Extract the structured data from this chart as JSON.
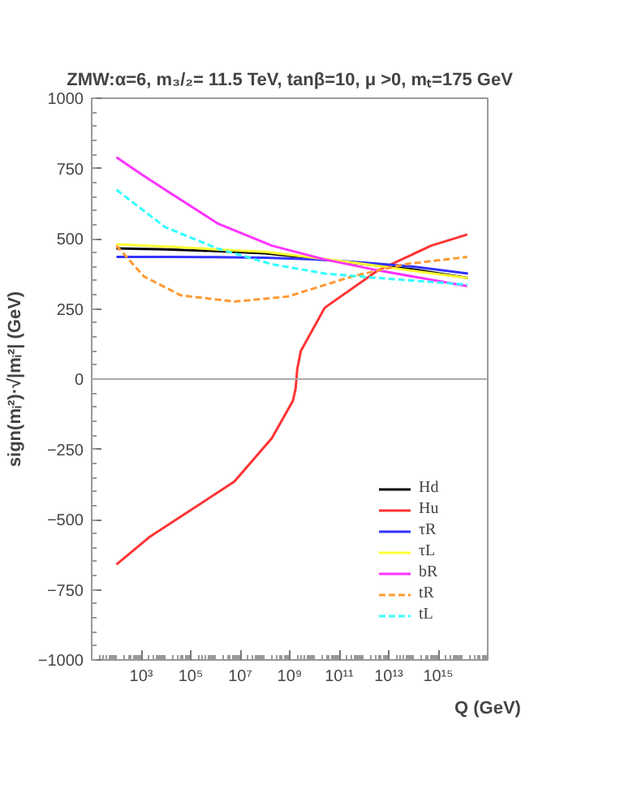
{
  "chart_data": {
    "type": "line",
    "title": "ZMW:α=6, m₃/₂= 11.5 TeV, tanβ=10, μ >0, mₜ=175 GeV",
    "xlabel": "Q (GeV)",
    "ylabel": "sign(mᵢ²)·√|mᵢ²| (GeV)",
    "log": "x",
    "xlim": [
      10,
      1e+17
    ],
    "xticks": [
      {
        "value": 1000,
        "label": "10³"
      },
      {
        "value": 100000,
        "label": "10⁵"
      },
      {
        "value": 10000000,
        "label": "10⁷"
      },
      {
        "value": 1000000000,
        "label": "10⁹"
      },
      {
        "value": 100000000000,
        "label": "10¹¹"
      },
      {
        "value": 10000000000000,
        "label": "10¹³"
      },
      {
        "value": 1000000000000000,
        "label": "10¹⁵"
      }
    ],
    "ylim": [
      -1000,
      1000
    ],
    "yticks": [
      -1000,
      -750,
      -500,
      -250,
      0,
      250,
      500,
      750,
      1000
    ],
    "grid": false,
    "legend": "bottom right",
    "ref_lines": [
      {
        "axis": "y",
        "value": 0,
        "label": null,
        "color": "#aaaaaa"
      }
    ],
    "series": [
      {
        "name": "Hd",
        "color": "#000000",
        "line_style": "solid",
        "x": [
          100.0,
          10000.0,
          1000000.0,
          100000000.0,
          10000000000.0,
          1000000000000.0,
          100000000000000.0,
          1.6e+16
        ],
        "values": [
          465,
          462,
          456,
          448,
          430,
          410,
          390,
          360
        ]
      },
      {
        "name": "Hu",
        "color": "#ff3333",
        "line_style": "solid",
        "x": [
          100.0,
          2100.0,
          5800000.0,
          190000000.0,
          1350000000.0,
          1740000000.0,
          2000000000.0,
          2800000000.0,
          26000000000.0,
          3700000000000.0,
          520000000000000.0,
          1.5e+16
        ],
        "values": [
          -660,
          -563,
          -365,
          -210,
          -77,
          -33,
          33,
          100,
          254,
          387,
          475,
          515
        ]
      },
      {
        "name": "τR",
        "color": "#3333ff",
        "line_style": "solid",
        "x": [
          100.0,
          10000.0,
          1000000.0,
          100000000.0,
          10000000000.0,
          1000000000000.0,
          100000000000000.0,
          1.6e+16
        ],
        "values": [
          435,
          435,
          434,
          432,
          426,
          415,
          400,
          376
        ]
      },
      {
        "name": "τL",
        "color": "#ffff33",
        "line_style": "solid",
        "x": [
          100.0,
          10000.0,
          1000000.0,
          100000000.0,
          10000000000.0,
          1000000000000.0,
          100000000000000.0,
          1.6e+16
        ],
        "values": [
          480,
          472,
          462,
          453,
          432,
          410,
          385,
          360
        ]
      },
      {
        "name": "bR",
        "color": "#ff33ff",
        "line_style": "solid",
        "x": [
          100.0,
          1000.0,
          9300.0,
          1300000.0,
          190000000.0,
          26000000000.0,
          3700000000000.0,
          1.5e+16
        ],
        "values": [
          790,
          730,
          674,
          553,
          475,
          426,
          387,
          331
        ]
      },
      {
        "name": "tR",
        "color": "#ff9933",
        "line_style": "dashed",
        "x": [
          100.0,
          1300.0,
          41000.0,
          5800000.0,
          830000000.0,
          320000000000.0,
          45000000000000.0,
          1.5e+16
        ],
        "values": [
          475,
          365,
          298,
          276,
          294,
          365,
          409,
          435
        ]
      },
      {
        "name": "tL",
        "color": "#33ffff",
        "line_style": "dashed",
        "x": [
          100.0,
          9300.0,
          1300000.0,
          190000000.0,
          26000000000.0,
          3700000000000.0,
          1.5e+16
        ],
        "values": [
          674,
          541,
          464,
          409,
          376,
          360,
          336
        ]
      }
    ]
  }
}
